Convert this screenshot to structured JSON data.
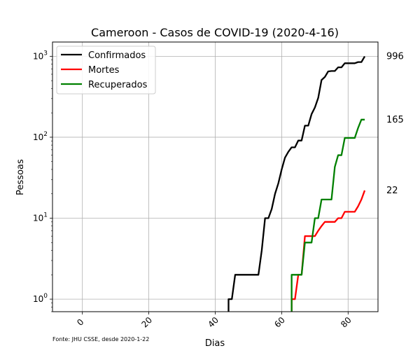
{
  "chart_data": {
    "type": "line",
    "title": "Cameroon - Casos de COVID-19 (2020-4-16)",
    "xlabel": "Dias",
    "ylabel": "Pessoas",
    "source_note": "Fonte: JHU CSSE, desde 2020-1-22",
    "y_scale": "log",
    "xlim": [
      -9,
      89
    ],
    "ylim": [
      0.7,
      1500
    ],
    "x_ticks": [
      0,
      20,
      40,
      60,
      80
    ],
    "y_ticks": [
      {
        "value": 1,
        "base": "10",
        "exp": "0"
      },
      {
        "value": 10,
        "base": "10",
        "exp": "1"
      },
      {
        "value": 100,
        "base": "10",
        "exp": "2"
      },
      {
        "value": 1000,
        "base": "10",
        "exp": "3"
      }
    ],
    "grid": true,
    "legend_position": "top-left",
    "series": [
      {
        "name": "Confirmados",
        "color": "#000000",
        "end_label": "996",
        "points": [
          [
            44,
            0.5
          ],
          [
            44,
            1
          ],
          [
            45,
            1
          ],
          [
            46,
            2
          ],
          [
            47,
            2
          ],
          [
            48,
            2
          ],
          [
            49,
            2
          ],
          [
            50,
            2
          ],
          [
            51,
            2
          ],
          [
            52,
            2
          ],
          [
            53,
            2
          ],
          [
            54,
            4
          ],
          [
            55,
            10
          ],
          [
            56,
            10
          ],
          [
            57,
            13
          ],
          [
            58,
            20
          ],
          [
            59,
            27
          ],
          [
            60,
            40
          ],
          [
            61,
            56
          ],
          [
            62,
            66
          ],
          [
            63,
            75
          ],
          [
            64,
            75
          ],
          [
            65,
            91
          ],
          [
            66,
            91
          ],
          [
            67,
            139
          ],
          [
            68,
            139
          ],
          [
            69,
            193
          ],
          [
            70,
            233
          ],
          [
            71,
            306
          ],
          [
            72,
            509
          ],
          [
            73,
            555
          ],
          [
            74,
            650
          ],
          [
            75,
            658
          ],
          [
            76,
            658
          ],
          [
            77,
            730
          ],
          [
            78,
            730
          ],
          [
            79,
            820
          ],
          [
            80,
            820
          ],
          [
            81,
            820
          ],
          [
            82,
            820
          ],
          [
            83,
            848
          ],
          [
            84,
            848
          ],
          [
            85,
            996
          ]
        ]
      },
      {
        "name": "Mortes",
        "color": "#ff0000",
        "end_label": "22",
        "points": [
          [
            63,
            0.5
          ],
          [
            63,
            1
          ],
          [
            64,
            1
          ],
          [
            65,
            2
          ],
          [
            66,
            2
          ],
          [
            67,
            6
          ],
          [
            68,
            6
          ],
          [
            69,
            6
          ],
          [
            70,
            6
          ],
          [
            71,
            7
          ],
          [
            72,
            8
          ],
          [
            73,
            9
          ],
          [
            74,
            9
          ],
          [
            75,
            9
          ],
          [
            76,
            9
          ],
          [
            77,
            10
          ],
          [
            78,
            10
          ],
          [
            79,
            12
          ],
          [
            80,
            12
          ],
          [
            81,
            12
          ],
          [
            82,
            12
          ],
          [
            83,
            14
          ],
          [
            84,
            17
          ],
          [
            85,
            22
          ]
        ]
      },
      {
        "name": "Recuperados",
        "color": "#008000",
        "end_label": "165",
        "points": [
          [
            63,
            0.5
          ],
          [
            63,
            2
          ],
          [
            64,
            2
          ],
          [
            65,
            2
          ],
          [
            66,
            2
          ],
          [
            67,
            5
          ],
          [
            68,
            5
          ],
          [
            69,
            5
          ],
          [
            70,
            10
          ],
          [
            71,
            10
          ],
          [
            72,
            17
          ],
          [
            73,
            17
          ],
          [
            74,
            17
          ],
          [
            75,
            17
          ],
          [
            76,
            43
          ],
          [
            77,
            60
          ],
          [
            78,
            60
          ],
          [
            79,
            98
          ],
          [
            80,
            98
          ],
          [
            81,
            98
          ],
          [
            82,
            98
          ],
          [
            83,
            130
          ],
          [
            84,
            165
          ],
          [
            85,
            165
          ]
        ]
      }
    ]
  }
}
